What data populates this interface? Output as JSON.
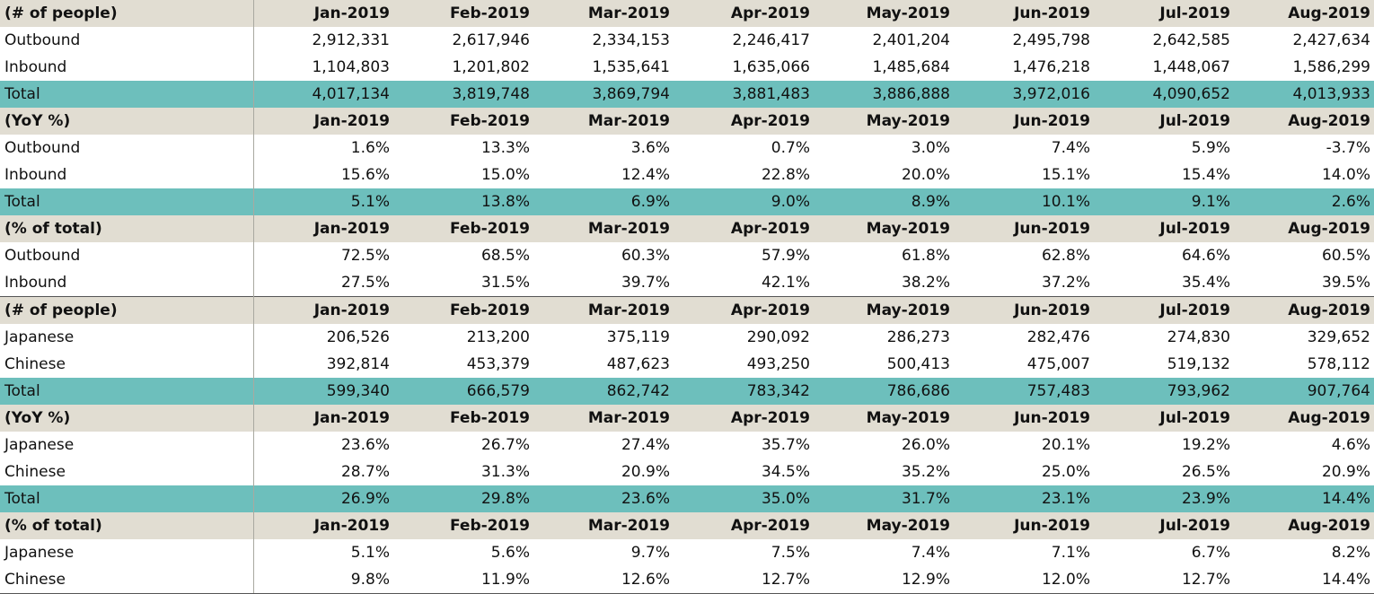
{
  "sections": [
    {
      "header": [
        "(# of people)",
        "Jan-2019",
        "Feb-2019",
        "Mar-2019",
        "Apr-2019",
        "May-2019",
        "Jun-2019",
        "Jul-2019",
        "Aug-2019"
      ],
      "rows": [
        {
          "type": "data",
          "cells": [
            "Outbound",
            "2,912,331",
            "2,617,946",
            "2,334,153",
            "2,246,417",
            "2,401,204",
            "2,495,798",
            "2,642,585",
            "2,427,634"
          ]
        },
        {
          "type": "data",
          "cells": [
            "Inbound",
            "1,104,803",
            "1,201,802",
            "1,535,641",
            "1,635,066",
            "1,485,684",
            "1,476,218",
            "1,448,067",
            "1,586,299"
          ]
        },
        {
          "type": "total",
          "cells": [
            "Total",
            "4,017,134",
            "3,819,748",
            "3,869,794",
            "3,881,483",
            "3,886,888",
            "3,972,016",
            "4,090,652",
            "4,013,933"
          ]
        }
      ]
    },
    {
      "header": [
        "(YoY %)",
        "Jan-2019",
        "Feb-2019",
        "Mar-2019",
        "Apr-2019",
        "May-2019",
        "Jun-2019",
        "Jul-2019",
        "Aug-2019"
      ],
      "rows": [
        {
          "type": "data",
          "cells": [
            "Outbound",
            "1.6%",
            "13.3%",
            "3.6%",
            "0.7%",
            "3.0%",
            "7.4%",
            "5.9%",
            "-3.7%"
          ]
        },
        {
          "type": "data",
          "cells": [
            "Inbound",
            "15.6%",
            "15.0%",
            "12.4%",
            "22.8%",
            "20.0%",
            "15.1%",
            "15.4%",
            "14.0%"
          ]
        },
        {
          "type": "total",
          "cells": [
            "Total",
            "5.1%",
            "13.8%",
            "6.9%",
            "9.0%",
            "8.9%",
            "10.1%",
            "9.1%",
            "2.6%"
          ]
        }
      ]
    },
    {
      "header": [
        "(% of total)",
        "Jan-2019",
        "Feb-2019",
        "Mar-2019",
        "Apr-2019",
        "May-2019",
        "Jun-2019",
        "Jul-2019",
        "Aug-2019"
      ],
      "rows": [
        {
          "type": "data",
          "cells": [
            "Outbound",
            "72.5%",
            "68.5%",
            "60.3%",
            "57.9%",
            "61.8%",
            "62.8%",
            "64.6%",
            "60.5%"
          ]
        },
        {
          "type": "data",
          "cells": [
            "Inbound",
            "27.5%",
            "31.5%",
            "39.7%",
            "42.1%",
            "38.2%",
            "37.2%",
            "35.4%",
            "39.5%"
          ]
        }
      ]
    },
    {
      "header": [
        "(# of people)",
        "Jan-2019",
        "Feb-2019",
        "Mar-2019",
        "Apr-2019",
        "May-2019",
        "Jun-2019",
        "Jul-2019",
        "Aug-2019"
      ],
      "separator": true,
      "rows": [
        {
          "type": "data",
          "cells": [
            "Japanese",
            "206,526",
            "213,200",
            "375,119",
            "290,092",
            "286,273",
            "282,476",
            "274,830",
            "329,652"
          ]
        },
        {
          "type": "data",
          "cells": [
            "Chinese",
            "392,814",
            "453,379",
            "487,623",
            "493,250",
            "500,413",
            "475,007",
            "519,132",
            "578,112"
          ]
        },
        {
          "type": "total",
          "cells": [
            "Total",
            "599,340",
            "666,579",
            "862,742",
            "783,342",
            "786,686",
            "757,483",
            "793,962",
            "907,764"
          ]
        }
      ]
    },
    {
      "header": [
        "(YoY %)",
        "Jan-2019",
        "Feb-2019",
        "Mar-2019",
        "Apr-2019",
        "May-2019",
        "Jun-2019",
        "Jul-2019",
        "Aug-2019"
      ],
      "rows": [
        {
          "type": "data",
          "cells": [
            "Japanese",
            "23.6%",
            "26.7%",
            "27.4%",
            "35.7%",
            "26.0%",
            "20.1%",
            "19.2%",
            "4.6%"
          ]
        },
        {
          "type": "data",
          "cells": [
            "Chinese",
            "28.7%",
            "31.3%",
            "20.9%",
            "34.5%",
            "35.2%",
            "25.0%",
            "26.5%",
            "20.9%"
          ]
        },
        {
          "type": "total",
          "cells": [
            "Total",
            "26.9%",
            "29.8%",
            "23.6%",
            "35.0%",
            "31.7%",
            "23.1%",
            "23.9%",
            "14.4%"
          ]
        }
      ]
    },
    {
      "header": [
        "(% of total)",
        "Jan-2019",
        "Feb-2019",
        "Mar-2019",
        "Apr-2019",
        "May-2019",
        "Jun-2019",
        "Jul-2019",
        "Aug-2019"
      ],
      "rows": [
        {
          "type": "data",
          "cells": [
            "Japanese",
            "5.1%",
            "5.6%",
            "9.7%",
            "7.5%",
            "7.4%",
            "7.1%",
            "6.7%",
            "8.2%"
          ]
        },
        {
          "type": "data",
          "cells": [
            "Chinese",
            "9.8%",
            "11.9%",
            "12.6%",
            "12.7%",
            "12.9%",
            "12.0%",
            "12.7%",
            "14.4%"
          ]
        }
      ]
    }
  ]
}
